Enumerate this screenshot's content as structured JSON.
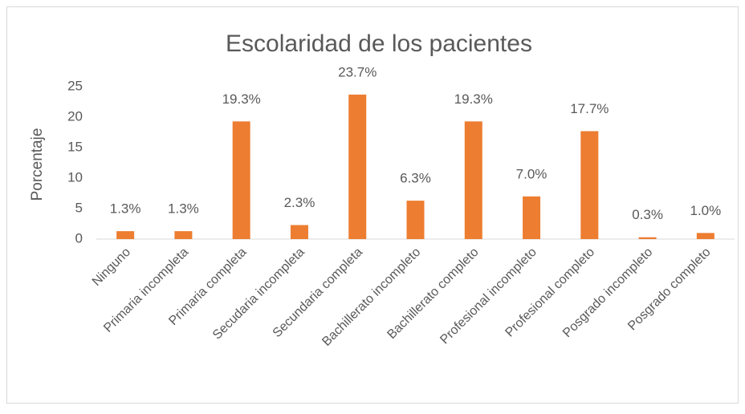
{
  "chart_data": {
    "type": "bar",
    "title": "Escolaridad de los pacientes",
    "y_label": "Porcentaje",
    "categories": [
      "Ninguno",
      "Primaria incompleta",
      "Primaria completa",
      "Secudaria incompleta",
      "Secundaria completa",
      "Bachillerato incompleto",
      "Bachillerato completo",
      "Profesional incompleto",
      "Profesional completo",
      "Posgrado incompleto",
      "Posgrado completo"
    ],
    "values": [
      1.3,
      1.3,
      19.3,
      2.3,
      23.7,
      6.3,
      19.3,
      7.0,
      17.7,
      0.3,
      1.0
    ],
    "value_labels": [
      "1.3%",
      "1.3%",
      "19.3%",
      "2.3%",
      "23.7%",
      "6.3%",
      "19.3%",
      "7.0%",
      "17.7%",
      "0.3%",
      "1.0%"
    ],
    "color": "#ed7d31",
    "ylim": [
      0,
      25
    ],
    "yticks": [
      0,
      5,
      10,
      15,
      20,
      25
    ],
    "grid": false
  }
}
